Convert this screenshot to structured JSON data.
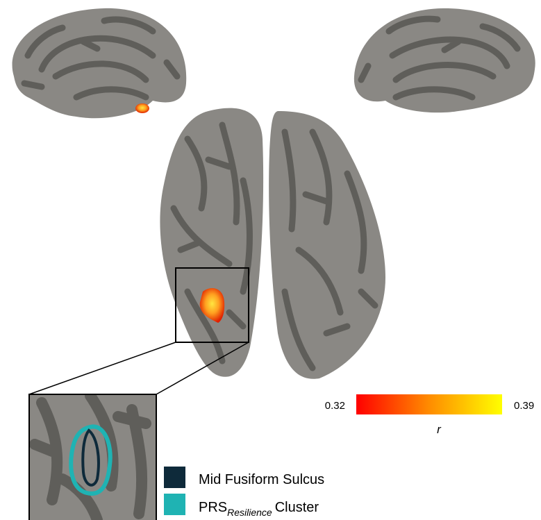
{
  "colorbar": {
    "min": 0.32,
    "max": 0.39,
    "label": "r",
    "colors": [
      "#ff0000",
      "#ff8c00",
      "#ffff00"
    ]
  },
  "legend": {
    "items": [
      {
        "label": "Mid Fusiform Sulcus",
        "color": "#0e2a3a"
      },
      {
        "label": "PRS",
        "subscript": "Resilience",
        "suffix": "Cluster",
        "color": "#1fb3b3"
      }
    ]
  }
}
